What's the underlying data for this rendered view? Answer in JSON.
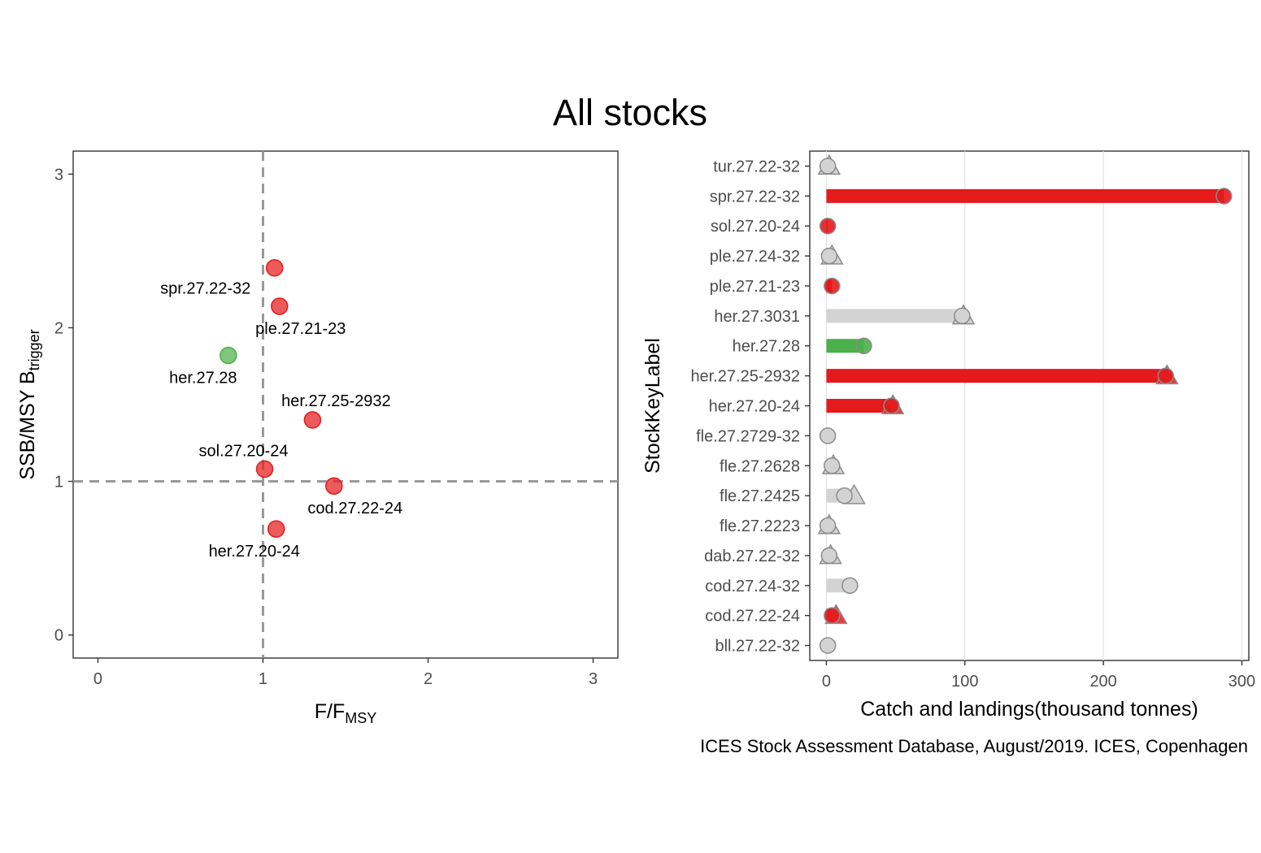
{
  "title": "All stocks",
  "caption": "ICES Stock Assessment Database, August/2019. ICES, Copenhagen",
  "colors": {
    "red": "#E41A1C",
    "green": "#4DAF4A",
    "grey": "#d3d3d3",
    "ref_line": "#999999"
  },
  "chart_data": [
    {
      "type": "scatter",
      "xlabel": {
        "main": "F",
        "sep": "/",
        "base": "F",
        "sub": "MSY"
      },
      "ylabel": {
        "main": "SSB",
        "sep": "/",
        "base": "MSY B",
        "sub": "trigger"
      },
      "xlim": [
        -0.15,
        3.15
      ],
      "ylim": [
        -0.15,
        3.15
      ],
      "xticks": [
        0,
        1,
        2,
        3
      ],
      "yticks": [
        0,
        1,
        2,
        3
      ],
      "grid": false,
      "reference_lines": {
        "x": 1,
        "y": 1
      },
      "points": [
        {
          "label": "spr.27.22-32",
          "x": 1.07,
          "y": 2.39,
          "status": "red"
        },
        {
          "label": "ple.27.21-23",
          "x": 1.1,
          "y": 2.14,
          "status": "red"
        },
        {
          "label": "her.27.28",
          "x": 0.79,
          "y": 1.82,
          "status": "green"
        },
        {
          "label": "her.27.25-2932",
          "x": 1.3,
          "y": 1.4,
          "status": "red"
        },
        {
          "label": "sol.27.20-24",
          "x": 1.01,
          "y": 1.08,
          "status": "red"
        },
        {
          "label": "cod.27.22-24",
          "x": 1.43,
          "y": 0.97,
          "status": "red"
        },
        {
          "label": "her.27.20-24",
          "x": 1.08,
          "y": 0.69,
          "status": "red"
        }
      ]
    },
    {
      "type": "bar",
      "orientation": "horizontal",
      "xlabel": "Catch and landings(thousand tonnes)",
      "ylabel": "StockKeyLabel",
      "xlim": [
        -12,
        305
      ],
      "xticks": [
        0,
        100,
        200,
        300
      ],
      "grid": true,
      "rows": [
        {
          "label": "tur.27.22-32",
          "catch": 1,
          "landings": 2,
          "status": "grey"
        },
        {
          "label": "spr.27.22-32",
          "catch": 287,
          "landings": null,
          "status": "red"
        },
        {
          "label": "sol.27.20-24",
          "catch": 1,
          "landings": null,
          "status": "red"
        },
        {
          "label": "ple.27.24-32",
          "catch": 2,
          "landings": 4,
          "status": "grey"
        },
        {
          "label": "ple.27.21-23",
          "catch": 4,
          "landings": null,
          "status": "red"
        },
        {
          "label": "her.27.3031",
          "catch": 98,
          "landings": 99,
          "status": "grey"
        },
        {
          "label": "her.27.28",
          "catch": 27,
          "landings": null,
          "status": "green"
        },
        {
          "label": "her.27.25-2932",
          "catch": 245,
          "landings": 246,
          "status": "red"
        },
        {
          "label": "her.27.20-24",
          "catch": 47,
          "landings": 48,
          "status": "red"
        },
        {
          "label": "fle.27.2729-32",
          "catch": 1,
          "landings": null,
          "status": "grey"
        },
        {
          "label": "fle.27.2628",
          "catch": 4,
          "landings": 5,
          "status": "grey"
        },
        {
          "label": "fle.27.2425",
          "catch": 13,
          "landings": 20,
          "status": "grey"
        },
        {
          "label": "fle.27.2223",
          "catch": 1,
          "landings": 2,
          "status": "grey"
        },
        {
          "label": "dab.27.22-32",
          "catch": 2,
          "landings": 3,
          "status": "grey"
        },
        {
          "label": "cod.27.24-32",
          "catch": 17,
          "landings": null,
          "status": "grey"
        },
        {
          "label": "cod.27.22-24",
          "catch": 4,
          "landings": 7,
          "status": "red"
        },
        {
          "label": "bll.27.22-32",
          "catch": 1,
          "landings": null,
          "status": "grey"
        }
      ]
    }
  ]
}
